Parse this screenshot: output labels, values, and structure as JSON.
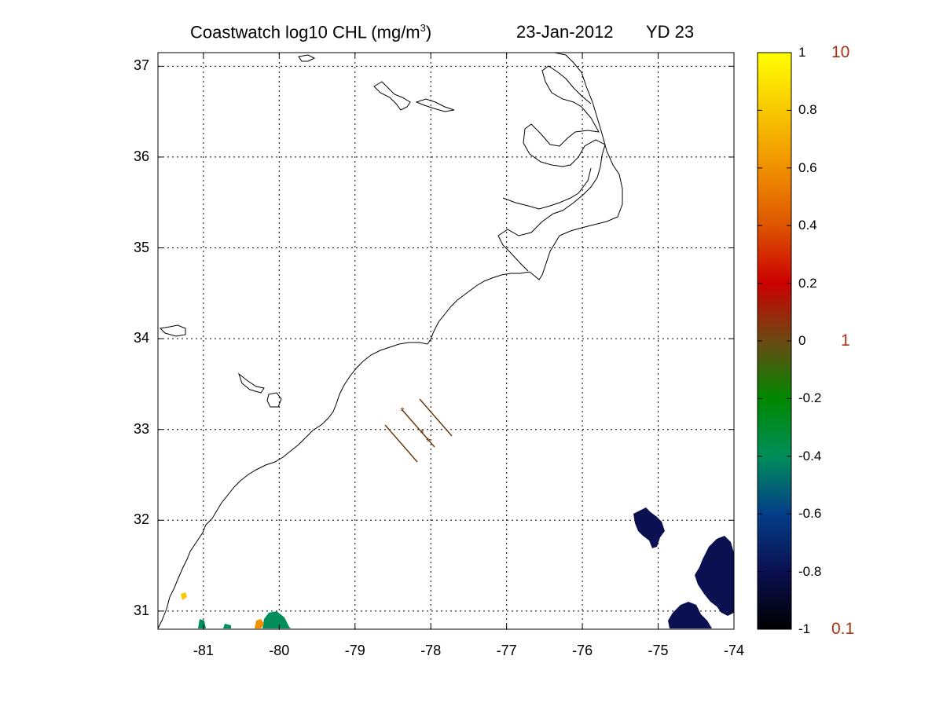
{
  "title": {
    "left": "Coastwatch  log10  CHL (mg/m",
    "sup": "3",
    "right": ")",
    "date": "23-Jan-2012",
    "yearday": "YD 23"
  },
  "axes": {
    "lon_range": [
      -81.6,
      -74
    ],
    "lat_range": [
      30.8,
      37.15
    ],
    "lon_ticks": [
      -81,
      -80,
      -79,
      -78,
      -77,
      -76,
      -75,
      -74
    ],
    "lat_ticks": [
      37,
      36,
      35,
      34,
      33,
      32,
      31
    ],
    "grid": "dotted"
  },
  "colorbar": {
    "range": [
      -1,
      1
    ],
    "ticks": [
      "1",
      "0.8",
      "0.6",
      "0.4",
      "0.2",
      "0",
      "-0.2",
      "-0.4",
      "-0.6",
      "-0.8",
      "-1"
    ],
    "tick_values": [
      1,
      0.8,
      0.6,
      0.4,
      0.2,
      0,
      -0.2,
      -0.4,
      -0.6,
      -0.8,
      -1
    ],
    "linear_labels": [
      {
        "text": "10",
        "value": 1
      },
      {
        "text": "1",
        "value": 0
      },
      {
        "text": "0.1",
        "value": -1
      }
    ],
    "colors": [
      "#000000",
      "#0a1050",
      "#043e88",
      "#008e5a",
      "#008800",
      "#6b4a14",
      "#cc0000",
      "#dd5500",
      "#f09000",
      "#f8c800",
      "#ffff00"
    ],
    "label_color": "#a83212"
  },
  "transect_color": "#6b3a10"
}
